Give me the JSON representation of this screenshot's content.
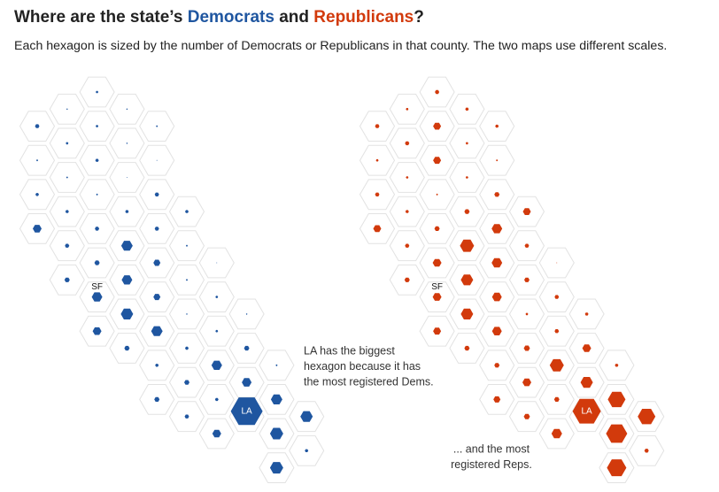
{
  "title": {
    "start": "Where are the state’s ",
    "dem": "Democrats",
    "middle": " and ",
    "rep": "Republicans",
    "end": "?"
  },
  "subtitle": "Each hexagon is sized by the number of Democrats or Republicans in that county. The two maps use different scales.",
  "maps": [
    {
      "color": "#1f56a0",
      "values": [
        1.5,
        0.8,
        0.8,
        2.5,
        1.5,
        1,
        1.5,
        0.8,
        1,
        2,
        0.5,
        1,
        0.5,
        2,
        1,
        2.5,
        2,
        2,
        2,
        5,
        2.5,
        2.5,
        2.5,
        6.5,
        1,
        3,
        4,
        0.5,
        3,
        6,
        1,
        6,
        4,
        1.5,
        7,
        0.8,
        0.8,
        5,
        6.5,
        1.5,
        3,
        2,
        3,
        2,
        6,
        1,
        3,
        5.5,
        3,
        2,
        6.5,
        2.5,
        18,
        7,
        5,
        7.5,
        2,
        7.5
      ],
      "labels": {
        "sf": "SF",
        "la": "LA"
      },
      "annotation": [
        "LA has the biggest",
        "hexagon because it has",
        "the most registered Dems."
      ]
    },
    {
      "color": "#d23a0c",
      "values": [
        2.5,
        1.5,
        2,
        2.5,
        4.5,
        2,
        2.5,
        1.5,
        1.5,
        4.5,
        1,
        1.5,
        1.5,
        2.5,
        1,
        3,
        2,
        3,
        4.5,
        4.5,
        3,
        6,
        2.5,
        8,
        2.5,
        5,
        6,
        0.5,
        3,
        7,
        3,
        5,
        5.5,
        2.5,
        7,
        1.5,
        2,
        4.5,
        5.5,
        2.5,
        3,
        3.5,
        5,
        3,
        8,
        2,
        5,
        7,
        4,
        3,
        10,
        3.5,
        16,
        10,
        6,
        12,
        2.5,
        11
      ],
      "labels": {
        "sf": "SF",
        "la": "LA"
      },
      "annotation": [
        "... and the most",
        "registered Reps."
      ]
    }
  ]
}
